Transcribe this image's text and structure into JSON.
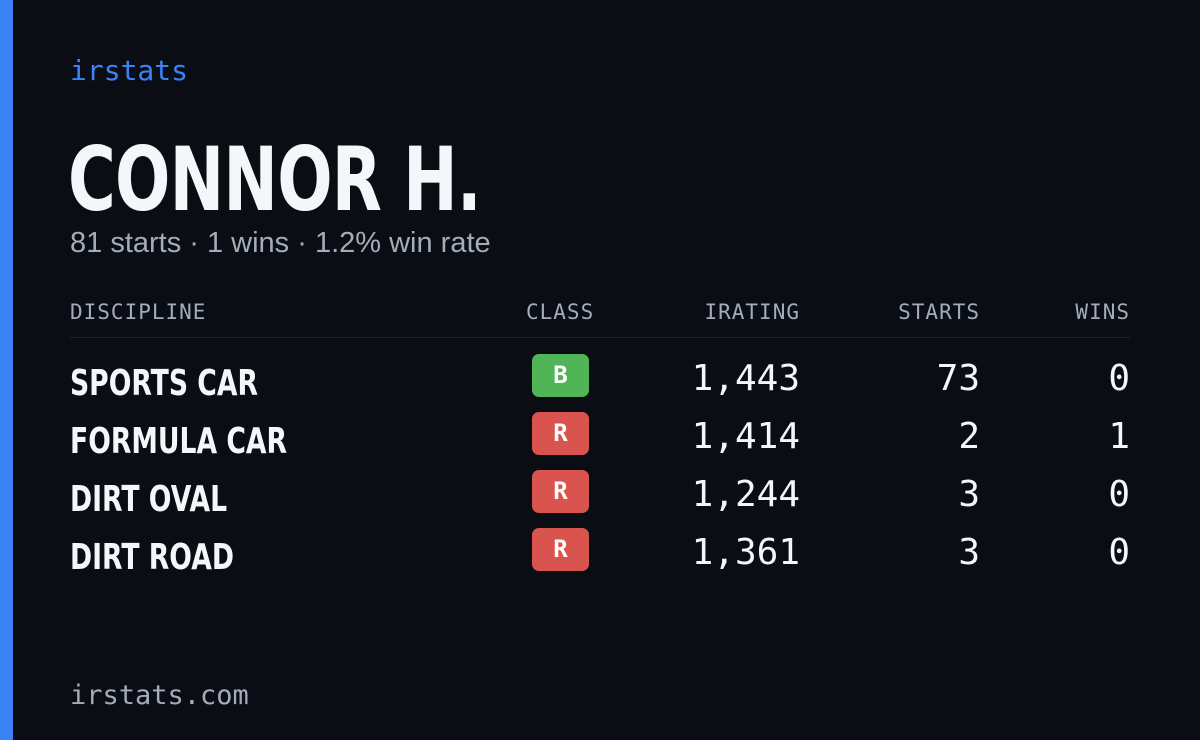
{
  "brand": "irstats",
  "driver": {
    "name": "CONNOR H.",
    "summary": "81 starts · 1 wins · 1.2% win rate"
  },
  "table": {
    "headers": {
      "discipline": "DISCIPLINE",
      "class": "CLASS",
      "irating": "IRATING",
      "starts": "STARTS",
      "wins": "WINS"
    },
    "rows": [
      {
        "discipline": "SPORTS CAR",
        "class": "B",
        "class_color": "#4fb556",
        "irating": "1,443",
        "starts": "73",
        "wins": "0"
      },
      {
        "discipline": "FORMULA CAR",
        "class": "R",
        "class_color": "#d9534f",
        "irating": "1,414",
        "starts": "2",
        "wins": "1"
      },
      {
        "discipline": "DIRT OVAL",
        "class": "R",
        "class_color": "#d9534f",
        "irating": "1,244",
        "starts": "3",
        "wins": "0"
      },
      {
        "discipline": "DIRT ROAD",
        "class": "R",
        "class_color": "#d9534f",
        "irating": "1,361",
        "starts": "3",
        "wins": "0"
      }
    ]
  },
  "footer": "irstats.com",
  "colors": {
    "background": "#0a0d14",
    "accent": "#3b82f6",
    "text_primary": "#f4f6fa",
    "text_muted": "#a3acba"
  }
}
